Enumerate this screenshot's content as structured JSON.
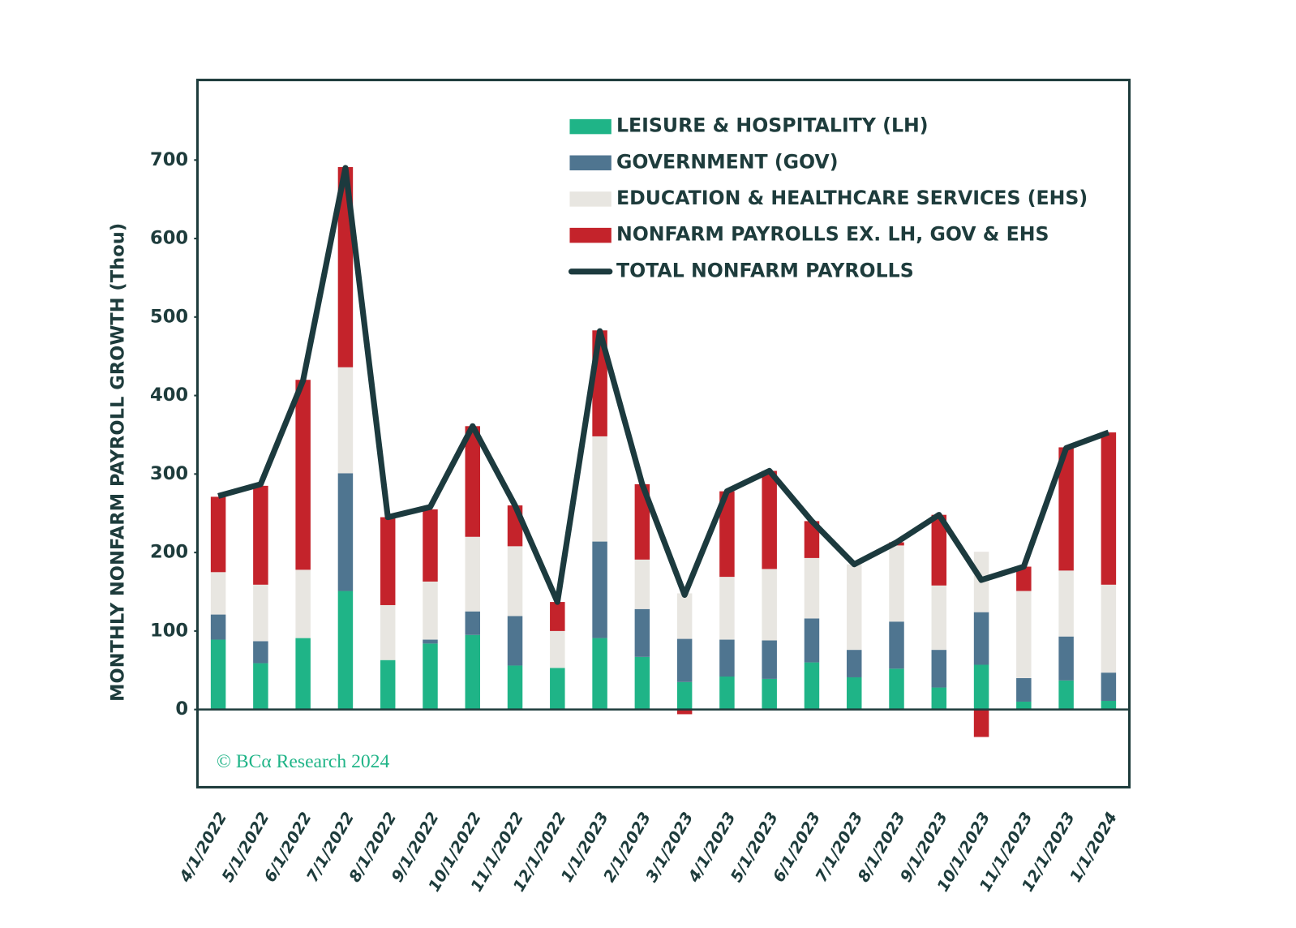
{
  "chart_data": {
    "type": "bar",
    "stacked": true,
    "y_label": "MONTHLY NONFARM PAYROLL GROWTH (Thou)",
    "annotation": "© BCα Research 2024",
    "categories": [
      "4/1/2022",
      "5/1/2022",
      "6/1/2022",
      "7/1/2022",
      "8/1/2022",
      "9/1/2022",
      "10/1/2022",
      "11/1/2022",
      "12/1/2022",
      "1/1/2023",
      "2/1/2023",
      "3/1/2023",
      "4/1/2023",
      "5/1/2023",
      "6/1/2023",
      "7/1/2023",
      "8/1/2023",
      "9/1/2023",
      "10/1/2023",
      "11/1/2023",
      "12/1/2023",
      "1/1/2024"
    ],
    "series": [
      {
        "name": "LEISURE & HOSPITALITY (LH)",
        "color": "#1fb487",
        "values": [
          89,
          59,
          91,
          151,
          63,
          84,
          95,
          56,
          53,
          91,
          67,
          35,
          42,
          39,
          60,
          41,
          52,
          28,
          57,
          10,
          37,
          11
        ]
      },
      {
        "name": "GOVERNMENT (GOV)",
        "color": "#4f7590",
        "values": [
          32,
          28,
          0,
          150,
          0,
          5,
          30,
          63,
          0,
          123,
          61,
          55,
          47,
          49,
          56,
          35,
          60,
          48,
          67,
          30,
          56,
          36
        ]
      },
      {
        "name": "EDUCATION & HEALTHCARE SERVICES (EHS)",
        "color": "#e8e6e1",
        "values": [
          54,
          72,
          87,
          135,
          70,
          74,
          95,
          89,
          47,
          134,
          63,
          58,
          80,
          91,
          77,
          109,
          97,
          82,
          77,
          111,
          84,
          112
        ]
      },
      {
        "name": "NONFARM PAYROLLS EX. LH, GOV & EHS",
        "color": "#c4232b",
        "values": [
          96,
          126,
          242,
          255,
          112,
          92,
          141,
          52,
          37,
          135,
          96,
          -6,
          109,
          125,
          47,
          0,
          4,
          90,
          -35,
          31,
          157,
          194
        ]
      },
      {
        "name": "TOTAL NONFARM PAYROLLS",
        "color": "#1c3a3e",
        "type": "line",
        "values": [
          272,
          287,
          419,
          690,
          245,
          258,
          361,
          260,
          137,
          482,
          287,
          146,
          278,
          304,
          240,
          185,
          213,
          248,
          165,
          182,
          333,
          353
        ]
      }
    ],
    "ylim": [
      -99,
      802
    ],
    "yticks": [
      0,
      100,
      200,
      300,
      400,
      500,
      600,
      700
    ],
    "legend": "top-right"
  }
}
